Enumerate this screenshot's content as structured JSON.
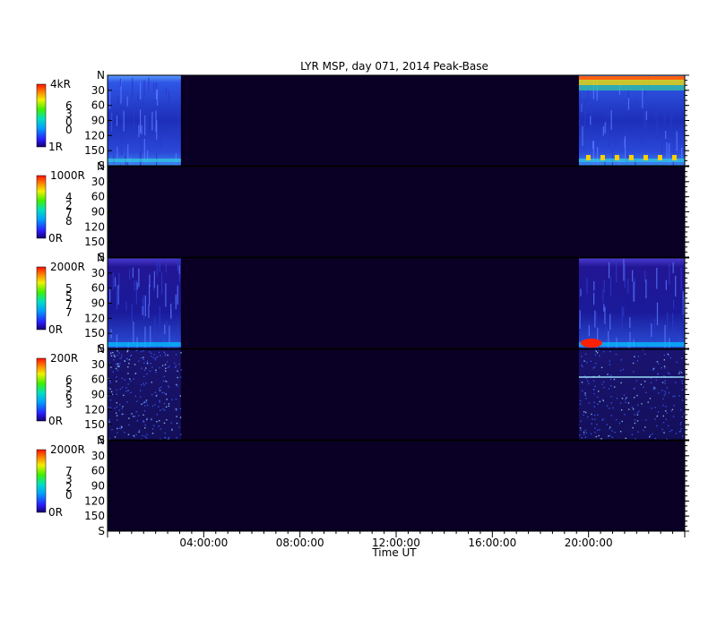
{
  "chart_data": {
    "type": "heatmap",
    "title": "LYR MSP, day 071, 2014 Peak-Base",
    "xlabel": "Time UT",
    "xlim_hours": [
      0,
      24
    ],
    "x_ticks": [
      "04:00:00",
      "08:00:00",
      "12:00:00",
      "16:00:00",
      "20:00:00"
    ],
    "x_tick_hours": [
      4,
      8,
      12,
      16,
      20
    ],
    "y_ticks": [
      "N",
      "30",
      "60",
      "90",
      "120",
      "150",
      "S"
    ],
    "ylim_deg": [
      0,
      180
    ],
    "data_windows_hours": [
      [
        0,
        3.05
      ],
      [
        19.6,
        24
      ]
    ],
    "background_color": "#0a0025",
    "panels": [
      {
        "name": "",
        "scale_max": "4kR",
        "scale_min": "1R",
        "scale_digits": [
          "6",
          "3",
          "0",
          "0"
        ],
        "activity": "strong"
      },
      {
        "name": "",
        "scale_max": "1000R",
        "scale_min": "0R",
        "scale_digits": [
          "4",
          "2",
          "7",
          "8"
        ],
        "activity": "none"
      },
      {
        "name": "",
        "scale_max": "2000R",
        "scale_min": "0R",
        "scale_digits": [
          "5",
          "5",
          "7",
          "7"
        ],
        "activity": "medium"
      },
      {
        "name": "",
        "scale_max": "200R",
        "scale_min": "0R",
        "scale_digits": [
          "6",
          "5",
          "6",
          "3"
        ],
        "activity": "noisy"
      },
      {
        "name": "",
        "scale_max": "2000R",
        "scale_min": "0R",
        "scale_digits": [
          "7",
          "3",
          "2",
          "0"
        ],
        "activity": "none"
      }
    ]
  }
}
